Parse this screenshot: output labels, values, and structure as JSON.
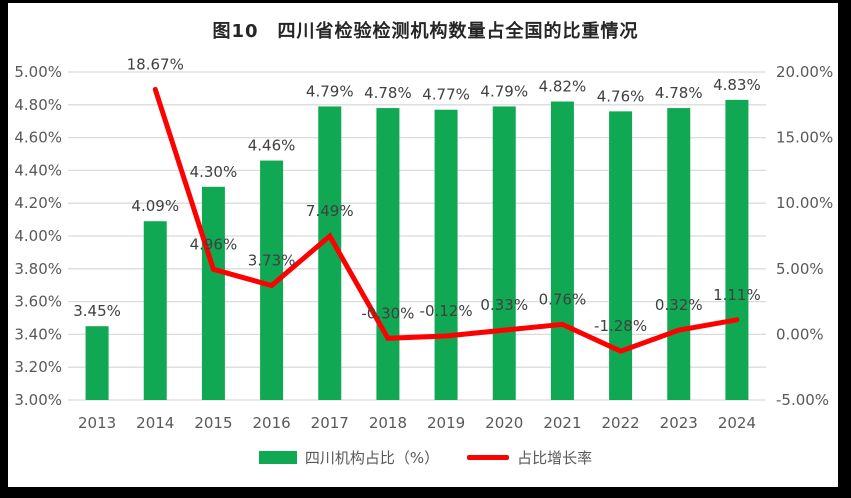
{
  "title": "图10　四川省检验检测机构数量占全国的比重情况",
  "colors": {
    "bar_green": "#10A853",
    "line_red": "#FF0000",
    "gridline": "#DBDBDB",
    "axis_text": "#595959",
    "data_label_text": "#404040",
    "title_text": "#262626",
    "frame_black": "#000000",
    "background": "#FFFFFF"
  },
  "legend": {
    "items": [
      {
        "label": "四川机构占比（%）",
        "swatch": "bar-swatch-green"
      },
      {
        "label": "占比增长率",
        "swatch": "line-swatch-red"
      }
    ]
  },
  "chart_data": {
    "type": "bar+line combo, dual axis",
    "title": "图10　四川省检验检测机构数量占全国的比重情况",
    "categories": [
      "2013",
      "2014",
      "2015",
      "2016",
      "2017",
      "2018",
      "2019",
      "2020",
      "2021",
      "2022",
      "2023",
      "2024"
    ],
    "series": [
      {
        "name": "四川机构占比（%）",
        "type": "bar",
        "axis": "left",
        "values": [
          3.45,
          4.09,
          4.3,
          4.46,
          4.79,
          4.78,
          4.77,
          4.79,
          4.82,
          4.76,
          4.78,
          4.83
        ],
        "labels": [
          "3.45%",
          "4.09%",
          "4.30%",
          "4.46%",
          "4.79%",
          "4.78%",
          "4.77%",
          "4.79%",
          "4.82%",
          "4.76%",
          "4.78%",
          "4.83%"
        ]
      },
      {
        "name": "占比增长率",
        "type": "line",
        "axis": "right",
        "values": [
          null,
          18.67,
          4.96,
          3.73,
          7.49,
          -0.3,
          -0.12,
          0.33,
          0.76,
          -1.28,
          0.32,
          1.11
        ],
        "labels": [
          "",
          "18.67%",
          "4.96%",
          "3.73%",
          "7.49%",
          "-0.30%",
          "-0.12%",
          "0.33%",
          "0.76%",
          "-1.28%",
          "0.32%",
          "1.11%"
        ]
      }
    ],
    "left_axis": {
      "min": 3.0,
      "max": 5.0,
      "step": 0.2,
      "ticks": [
        "5.00%",
        "4.80%",
        "4.60%",
        "4.40%",
        "4.20%",
        "4.00%",
        "3.80%",
        "3.60%",
        "3.40%",
        "3.20%",
        "3.00%"
      ]
    },
    "right_axis": {
      "min": -5.0,
      "max": 20.0,
      "step": 5.0,
      "ticks": [
        "20.00%",
        "15.00%",
        "10.00%",
        "5.00%",
        "0.00%",
        "-5.00%"
      ]
    },
    "grid": "horizontal gridlines at each left-axis tick",
    "legend_position": "bottom-center"
  }
}
